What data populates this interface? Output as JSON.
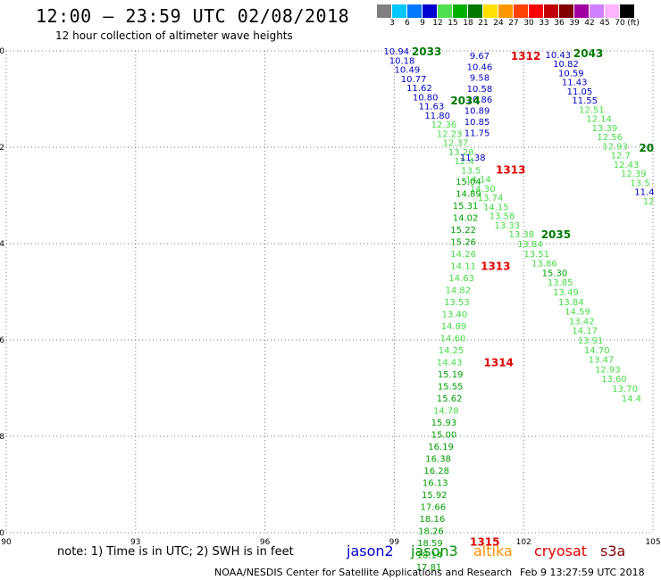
{
  "title": "12:00 — 23:59 UTC 02/08/2018",
  "subtitle": "12 hour collection of altimeter wave heights",
  "colorbar": {
    "unit_label": "(ft)",
    "labels": [
      "3",
      "6",
      "9",
      "12",
      "15",
      "18",
      "21",
      "24",
      "27",
      "30",
      "33",
      "36",
      "39",
      "42",
      "45",
      "70"
    ],
    "colors": [
      "#808080",
      "#00c8ff",
      "#0078ff",
      "#0000d0",
      "#50e050",
      "#00b000",
      "#007800",
      "#ffe000",
      "#ff9800",
      "#ff4000",
      "#ff0000",
      "#c00000",
      "#800000",
      "#a000a0",
      "#d080ff",
      "#ffb4ff",
      "#000000"
    ]
  },
  "map": {
    "lon_range": [
      90,
      105
    ],
    "lat_range": [
      -50,
      -40
    ],
    "lon_ticks": [
      "90",
      "93",
      "96",
      "99",
      "102",
      "105"
    ],
    "lat_ticks": [
      "-40",
      "-42",
      "-44",
      "-46",
      "-48",
      "-50"
    ]
  },
  "tracks": [
    {
      "satellite": "jason2",
      "time": "2033",
      "color": "#0000c0",
      "points": [
        {
          "lon": 99.05,
          "lat": -40.0,
          "v": "10.94"
        },
        {
          "lon": 99.18,
          "lat": -40.19,
          "v": "10.18"
        },
        {
          "lon": 99.3,
          "lat": -40.38,
          "v": "10.49"
        },
        {
          "lon": 99.45,
          "lat": -40.57,
          "v": "10.77"
        },
        {
          "lon": 99.58,
          "lat": -40.76,
          "v": "11.62"
        },
        {
          "lon": 99.72,
          "lat": -40.95,
          "v": "10.80"
        },
        {
          "lon": 99.86,
          "lat": -41.14,
          "v": "11.63"
        },
        {
          "lon": 100.0,
          "lat": -41.33,
          "v": "11.80"
        }
      ]
    },
    {
      "satellite": "jason3",
      "time": "2034",
      "color": "#44dd44",
      "points": [
        {
          "lon": 100.15,
          "lat": -41.52,
          "v": "12.36"
        },
        {
          "lon": 100.28,
          "lat": -41.71,
          "v": "12.23"
        },
        {
          "lon": 100.42,
          "lat": -41.9,
          "v": "12.37"
        },
        {
          "lon": 100.55,
          "lat": -42.09,
          "v": "13.28"
        },
        {
          "lon": 100.62,
          "lat": -42.28,
          "v": "12.4"
        },
        {
          "lon": 100.78,
          "lat": -42.47,
          "v": "13.5"
        },
        {
          "lon": 100.95,
          "lat": -42.66,
          "v": "14.14"
        },
        {
          "lon": 101.05,
          "lat": -42.85,
          "v": "14.30"
        },
        {
          "lon": 101.23,
          "lat": -43.04,
          "v": "13.74"
        },
        {
          "lon": 101.36,
          "lat": -43.23,
          "v": "14.15"
        },
        {
          "lon": 101.5,
          "lat": -43.42,
          "v": "13.58"
        },
        {
          "lon": 101.62,
          "lat": -43.61,
          "v": "13.33"
        }
      ]
    },
    {
      "satellite": "jason2",
      "time": "1312",
      "color": "#0000c0",
      "points": [
        {
          "lon": 100.98,
          "lat": -40.09,
          "v": "9.67"
        },
        {
          "lon": 100.98,
          "lat": -40.32,
          "v": "10.46"
        },
        {
          "lon": 100.98,
          "lat": -40.55,
          "v": "9.58"
        },
        {
          "lon": 100.98,
          "lat": -40.78,
          "v": "10.58"
        },
        {
          "lon": 100.98,
          "lat": -41.0,
          "v": "10.86"
        },
        {
          "lon": 100.92,
          "lat": -41.23,
          "v": "10.89"
        },
        {
          "lon": 100.92,
          "lat": -41.46,
          "v": "10.85"
        },
        {
          "lon": 100.92,
          "lat": -41.69,
          "v": "11.75"
        },
        {
          "lon": 100.82,
          "lat": -42.2,
          "v": "11.38"
        }
      ]
    },
    {
      "satellite": "jason3",
      "time": "1313",
      "color": "#00a000",
      "points": [
        {
          "lon": 100.72,
          "lat": -42.7,
          "v": "15.04"
        },
        {
          "lon": 100.72,
          "lat": -42.95,
          "v": "14.89"
        },
        {
          "lon": 100.65,
          "lat": -43.2,
          "v": "15.31"
        },
        {
          "lon": 100.65,
          "lat": -43.45,
          "v": "14.02"
        },
        {
          "lon": 100.6,
          "lat": -43.7,
          "v": "15.22"
        },
        {
          "lon": 100.6,
          "lat": -43.95,
          "v": "15.26"
        }
      ]
    },
    {
      "satellite": "jason3",
      "time": "1313",
      "color": "#44dd44",
      "points": [
        {
          "lon": 100.6,
          "lat": -44.2,
          "v": "14.26"
        },
        {
          "lon": 100.6,
          "lat": -44.45,
          "v": "14.11"
        },
        {
          "lon": 100.56,
          "lat": -44.7,
          "v": "14.63"
        },
        {
          "lon": 100.48,
          "lat": -44.95,
          "v": "14.82"
        },
        {
          "lon": 100.45,
          "lat": -45.2,
          "v": "13.53"
        },
        {
          "lon": 100.4,
          "lat": -45.45,
          "v": "13.40"
        },
        {
          "lon": 100.38,
          "lat": -45.7,
          "v": "14.89"
        },
        {
          "lon": 100.36,
          "lat": -45.95,
          "v": "14.60"
        },
        {
          "lon": 100.32,
          "lat": -46.2,
          "v": "14.25"
        },
        {
          "lon": 100.28,
          "lat": -46.45,
          "v": "14.43"
        }
      ]
    },
    {
      "satellite": "jason3",
      "time": "1314",
      "color": "#00a000",
      "points": [
        {
          "lon": 100.3,
          "lat": -46.7,
          "v": "15.19"
        },
        {
          "lon": 100.3,
          "lat": -46.95,
          "v": "15.55"
        },
        {
          "lon": 100.28,
          "lat": -47.2,
          "v": "15.62"
        }
      ]
    },
    {
      "satellite": "jason3",
      "time": "1314",
      "color": "#44dd44",
      "points": [
        {
          "lon": 100.2,
          "lat": -47.45,
          "v": "14.78"
        }
      ]
    },
    {
      "satellite": "jason3",
      "time": "1315",
      "color": "#00a000",
      "points": [
        {
          "lon": 100.15,
          "lat": -47.7,
          "v": "15.93"
        },
        {
          "lon": 100.15,
          "lat": -47.95,
          "v": "15.00"
        },
        {
          "lon": 100.08,
          "lat": -48.2,
          "v": "16.19"
        },
        {
          "lon": 100.02,
          "lat": -48.45,
          "v": "16.38"
        },
        {
          "lon": 99.98,
          "lat": -48.7,
          "v": "16.28"
        },
        {
          "lon": 99.95,
          "lat": -48.95,
          "v": "16.13"
        },
        {
          "lon": 99.93,
          "lat": -49.2,
          "v": "15.92"
        },
        {
          "lon": 99.9,
          "lat": -49.45,
          "v": "17.66"
        },
        {
          "lon": 99.88,
          "lat": -49.7,
          "v": "18.16"
        },
        {
          "lon": 99.85,
          "lat": -49.95,
          "v": "18.26"
        },
        {
          "lon": 99.83,
          "lat": -50.2,
          "v": "18.59"
        },
        {
          "lon": 99.82,
          "lat": -50.45,
          "v": "18.14"
        },
        {
          "lon": 99.8,
          "lat": -50.7,
          "v": "17.81"
        }
      ]
    },
    {
      "satellite": "jason3",
      "time": "2035",
      "color": "#44dd44",
      "points": [
        {
          "lon": 101.95,
          "lat": -43.8,
          "v": "13.38"
        },
        {
          "lon": 102.15,
          "lat": -44.0,
          "v": "13.84"
        },
        {
          "lon": 102.3,
          "lat": -44.2,
          "v": "13.51"
        },
        {
          "lon": 102.48,
          "lat": -44.4,
          "v": "13.86"
        }
      ]
    },
    {
      "satellite": "jason3",
      "time": "2035",
      "color": "#00a000",
      "points": [
        {
          "lon": 102.72,
          "lat": -44.6,
          "v": "15.30"
        }
      ]
    },
    {
      "satellite": "jason3",
      "time": "2035",
      "color": "#44dd44",
      "points": [
        {
          "lon": 102.85,
          "lat": -44.8,
          "v": "13.85"
        },
        {
          "lon": 102.98,
          "lat": -45.0,
          "v": "13.49"
        },
        {
          "lon": 103.1,
          "lat": -45.2,
          "v": "13.84"
        },
        {
          "lon": 103.25,
          "lat": -45.4,
          "v": "14.59"
        },
        {
          "lon": 103.35,
          "lat": -45.6,
          "v": "13.42"
        },
        {
          "lon": 103.42,
          "lat": -45.8,
          "v": "14.17"
        },
        {
          "lon": 103.55,
          "lat": -46.0,
          "v": "13.91"
        },
        {
          "lon": 103.7,
          "lat": -46.2,
          "v": "14.70"
        },
        {
          "lon": 103.8,
          "lat": -46.4,
          "v": "13.47"
        },
        {
          "lon": 103.95,
          "lat": -46.6,
          "v": "12.93"
        },
        {
          "lon": 104.1,
          "lat": -46.8,
          "v": "13.60"
        },
        {
          "lon": 104.35,
          "lat": -47.0,
          "v": "13.70"
        },
        {
          "lon": 104.5,
          "lat": -47.2,
          "v": "14.4"
        }
      ]
    },
    {
      "satellite": "jason2",
      "time": "2043",
      "color": "#0000c0",
      "points": [
        {
          "lon": 102.8,
          "lat": -40.07,
          "v": "10.43"
        },
        {
          "lon": 102.98,
          "lat": -40.26,
          "v": "10.82"
        },
        {
          "lon": 103.1,
          "lat": -40.45,
          "v": "10.59"
        },
        {
          "lon": 103.18,
          "lat": -40.64,
          "v": "11.43"
        },
        {
          "lon": 103.3,
          "lat": -40.83,
          "v": "11.05"
        },
        {
          "lon": 103.42,
          "lat": -41.02,
          "v": "11.55"
        }
      ]
    },
    {
      "satellite": "jason3",
      "time": "2043",
      "color": "#44dd44",
      "points": [
        {
          "lon": 103.58,
          "lat": -41.21,
          "v": "12.51"
        },
        {
          "lon": 103.75,
          "lat": -41.4,
          "v": "12.14"
        },
        {
          "lon": 103.88,
          "lat": -41.59,
          "v": "13.39"
        },
        {
          "lon": 104.0,
          "lat": -41.78,
          "v": "12.56"
        },
        {
          "lon": 104.12,
          "lat": -41.97,
          "v": "12.93"
        },
        {
          "lon": 104.25,
          "lat": -42.16,
          "v": "12.7"
        },
        {
          "lon": 104.38,
          "lat": -42.35,
          "v": "12.43"
        },
        {
          "lon": 104.55,
          "lat": -42.54,
          "v": "12.39"
        },
        {
          "lon": 104.7,
          "lat": -42.73,
          "v": "13.5"
        }
      ]
    },
    {
      "satellite": "jason2",
      "time": "2043",
      "color": "#0000c0",
      "points": [
        {
          "lon": 104.8,
          "lat": -42.92,
          "v": "11.4"
        }
      ]
    },
    {
      "satellite": "jason3",
      "time": "2043",
      "color": "#44dd44",
      "points": [
        {
          "lon": 104.9,
          "lat": -43.11,
          "v": "12"
        }
      ]
    }
  ],
  "time_labels": [
    {
      "text": "2033",
      "color": "#007800",
      "lon": 99.75,
      "lat": -40.0
    },
    {
      "text": "2034",
      "color": "#007800",
      "lon": 100.65,
      "lat": -41.02
    },
    {
      "text": "1312",
      "color": "#e00000",
      "lon": 102.05,
      "lat": -40.09
    },
    {
      "text": "2043",
      "color": "#007800",
      "lon": 103.5,
      "lat": -40.04
    },
    {
      "text": "20",
      "color": "#007800",
      "lon": 104.85,
      "lat": -42.0
    },
    {
      "text": "1313",
      "color": "#e00000",
      "lon": 101.7,
      "lat": -42.45
    },
    {
      "text": "2035",
      "color": "#007800",
      "lon": 102.75,
      "lat": -43.8
    },
    {
      "text": "1313",
      "color": "#e00000",
      "lon": 101.35,
      "lat": -44.45
    },
    {
      "text": "1314",
      "color": "#e00000",
      "lon": 101.42,
      "lat": -46.45
    },
    {
      "text": "1315",
      "color": "#e00000",
      "lon": 101.1,
      "lat": -50.18
    }
  ],
  "note": "note: 1) Time is in UTC; 2) SWH is in feet",
  "satellites": [
    {
      "name": "jason2",
      "color": "#0000d0"
    },
    {
      "name": "jason3",
      "color": "#009000"
    },
    {
      "name": "altika",
      "color": "#ff9000"
    },
    {
      "name": "cryosat",
      "color": "#e00000"
    },
    {
      "name": "s3a",
      "color": "#800000"
    }
  ],
  "footer_left": "NOAA/NESDIS Center for Satellite Applications and Research",
  "footer_right": "Feb  9 13:27:59 UTC 2018"
}
